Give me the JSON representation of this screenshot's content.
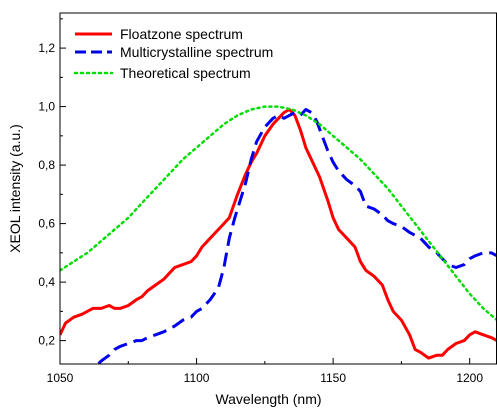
{
  "chart_data": {
    "type": "line",
    "xlabel": "Wavelength (nm)",
    "ylabel": "XEOL intensity (a.u.)",
    "xlim": [
      1050,
      1210
    ],
    "ylim": [
      0.12,
      1.32
    ],
    "xticks": [
      1050,
      1100,
      1150,
      1200
    ],
    "xtick_labels": [
      "1050",
      "1100",
      "1150",
      "1200"
    ],
    "yticks": [
      0.2,
      0.4,
      0.6,
      0.8,
      1.0,
      1.2
    ],
    "ytick_labels": [
      "0,2",
      "0,4",
      "0,6",
      "0,8",
      "1,0",
      "1,2"
    ],
    "legend_position": "top-left",
    "series": [
      {
        "name": "Floatzone spectrum",
        "color": "#ff0000",
        "style": "solid",
        "x": [
          1050,
          1052,
          1055,
          1058,
          1060,
          1062,
          1065,
          1068,
          1070,
          1072,
          1075,
          1078,
          1080,
          1082,
          1085,
          1088,
          1090,
          1092,
          1095,
          1098,
          1100,
          1102,
          1105,
          1108,
          1110,
          1112,
          1115,
          1118,
          1120,
          1122,
          1125,
          1128,
          1130,
          1132,
          1134,
          1136,
          1138,
          1140,
          1142,
          1145,
          1148,
          1150,
          1152,
          1155,
          1158,
          1160,
          1162,
          1165,
          1168,
          1170,
          1172,
          1175,
          1178,
          1180,
          1182,
          1185,
          1188,
          1190,
          1192,
          1195,
          1198,
          1200,
          1202,
          1205,
          1208,
          1210
        ],
        "y": [
          0.22,
          0.26,
          0.28,
          0.29,
          0.3,
          0.31,
          0.31,
          0.32,
          0.31,
          0.31,
          0.32,
          0.34,
          0.35,
          0.37,
          0.39,
          0.41,
          0.43,
          0.45,
          0.46,
          0.47,
          0.49,
          0.52,
          0.55,
          0.58,
          0.6,
          0.62,
          0.7,
          0.77,
          0.81,
          0.84,
          0.9,
          0.94,
          0.96,
          0.98,
          0.99,
          0.97,
          0.92,
          0.86,
          0.82,
          0.76,
          0.68,
          0.62,
          0.58,
          0.55,
          0.52,
          0.47,
          0.44,
          0.42,
          0.39,
          0.34,
          0.3,
          0.27,
          0.22,
          0.17,
          0.16,
          0.14,
          0.15,
          0.15,
          0.17,
          0.19,
          0.2,
          0.22,
          0.23,
          0.22,
          0.21,
          0.2
        ]
      },
      {
        "name": "Multicrystalline spectrum",
        "color": "#0000ee",
        "style": "dashed",
        "x": [
          1058,
          1062,
          1065,
          1068,
          1070,
          1072,
          1075,
          1078,
          1080,
          1082,
          1085,
          1088,
          1090,
          1092,
          1095,
          1098,
          1100,
          1102,
          1105,
          1108,
          1110,
          1112,
          1114,
          1116,
          1118,
          1120,
          1122,
          1125,
          1128,
          1130,
          1132,
          1134,
          1136,
          1138,
          1140,
          1142,
          1144,
          1146,
          1148,
          1150,
          1152,
          1155,
          1158,
          1160,
          1162,
          1165,
          1168,
          1170,
          1172,
          1175,
          1178,
          1180,
          1182,
          1185,
          1188,
          1190,
          1192,
          1195,
          1198,
          1200,
          1202,
          1205,
          1208,
          1210
        ],
        "y": [
          0.08,
          0.1,
          0.13,
          0.15,
          0.17,
          0.18,
          0.19,
          0.2,
          0.2,
          0.21,
          0.22,
          0.23,
          0.24,
          0.25,
          0.27,
          0.28,
          0.3,
          0.31,
          0.34,
          0.38,
          0.45,
          0.55,
          0.62,
          0.68,
          0.74,
          0.82,
          0.88,
          0.93,
          0.96,
          0.97,
          0.96,
          0.97,
          0.98,
          0.97,
          0.99,
          0.98,
          0.95,
          0.9,
          0.85,
          0.81,
          0.78,
          0.75,
          0.73,
          0.71,
          0.66,
          0.65,
          0.63,
          0.61,
          0.6,
          0.59,
          0.57,
          0.56,
          0.55,
          0.52,
          0.5,
          0.48,
          0.46,
          0.45,
          0.46,
          0.48,
          0.49,
          0.5,
          0.5,
          0.49
        ]
      },
      {
        "name": "Theoretical spectrum",
        "color": "#00dd00",
        "style": "dotted",
        "x": [
          1050,
          1055,
          1060,
          1065,
          1070,
          1075,
          1080,
          1085,
          1090,
          1095,
          1100,
          1105,
          1110,
          1115,
          1120,
          1125,
          1130,
          1135,
          1140,
          1145,
          1150,
          1155,
          1160,
          1165,
          1170,
          1175,
          1180,
          1185,
          1190,
          1195,
          1200,
          1205,
          1210
        ],
        "y": [
          0.44,
          0.47,
          0.5,
          0.54,
          0.58,
          0.62,
          0.67,
          0.72,
          0.77,
          0.82,
          0.86,
          0.9,
          0.94,
          0.97,
          0.99,
          1.0,
          1.0,
          0.99,
          0.97,
          0.94,
          0.9,
          0.86,
          0.82,
          0.77,
          0.72,
          0.66,
          0.6,
          0.54,
          0.48,
          0.42,
          0.36,
          0.31,
          0.27
        ]
      }
    ]
  }
}
